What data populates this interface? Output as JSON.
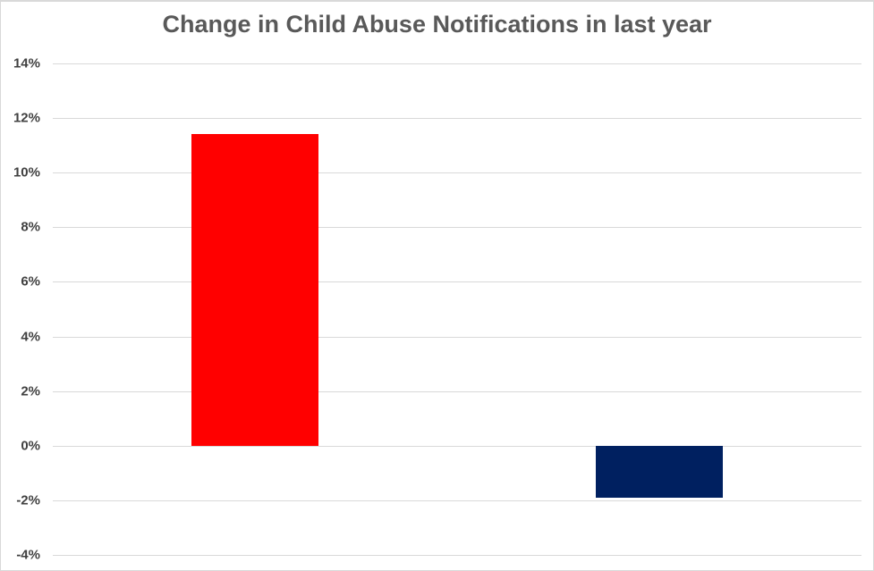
{
  "chart_data": {
    "type": "bar",
    "title": "Change in Child Abuse Notifications in last year",
    "categories": [
      "",
      ""
    ],
    "values": [
      11.4,
      -1.9
    ],
    "bar_colors": [
      "#ff0000",
      "#002060"
    ],
    "xlabel": "",
    "ylabel": "",
    "ylim": [
      -4,
      14
    ],
    "ytick_step": 2,
    "yticks": [
      {
        "value": 14,
        "label": "14%"
      },
      {
        "value": 12,
        "label": "12%"
      },
      {
        "value": 10,
        "label": "10%"
      },
      {
        "value": 8,
        "label": "8%"
      },
      {
        "value": 6,
        "label": "6%"
      },
      {
        "value": 4,
        "label": "4%"
      },
      {
        "value": 2,
        "label": "2%"
      },
      {
        "value": 0,
        "label": "0%"
      },
      {
        "value": -2,
        "label": "-2%"
      },
      {
        "value": -4,
        "label": "-4%"
      }
    ],
    "grid": "horizontal",
    "legend": "none",
    "x_axis_labels_visible": false,
    "data_labels_visible": false
  },
  "colors": {
    "background": "#ffffff",
    "border": "#d9d9d9",
    "gridline": "#d9d9d9",
    "title_text": "#595959",
    "tick_text": "#404040",
    "bar_positive": "#ff0000",
    "bar_negative": "#002060"
  }
}
